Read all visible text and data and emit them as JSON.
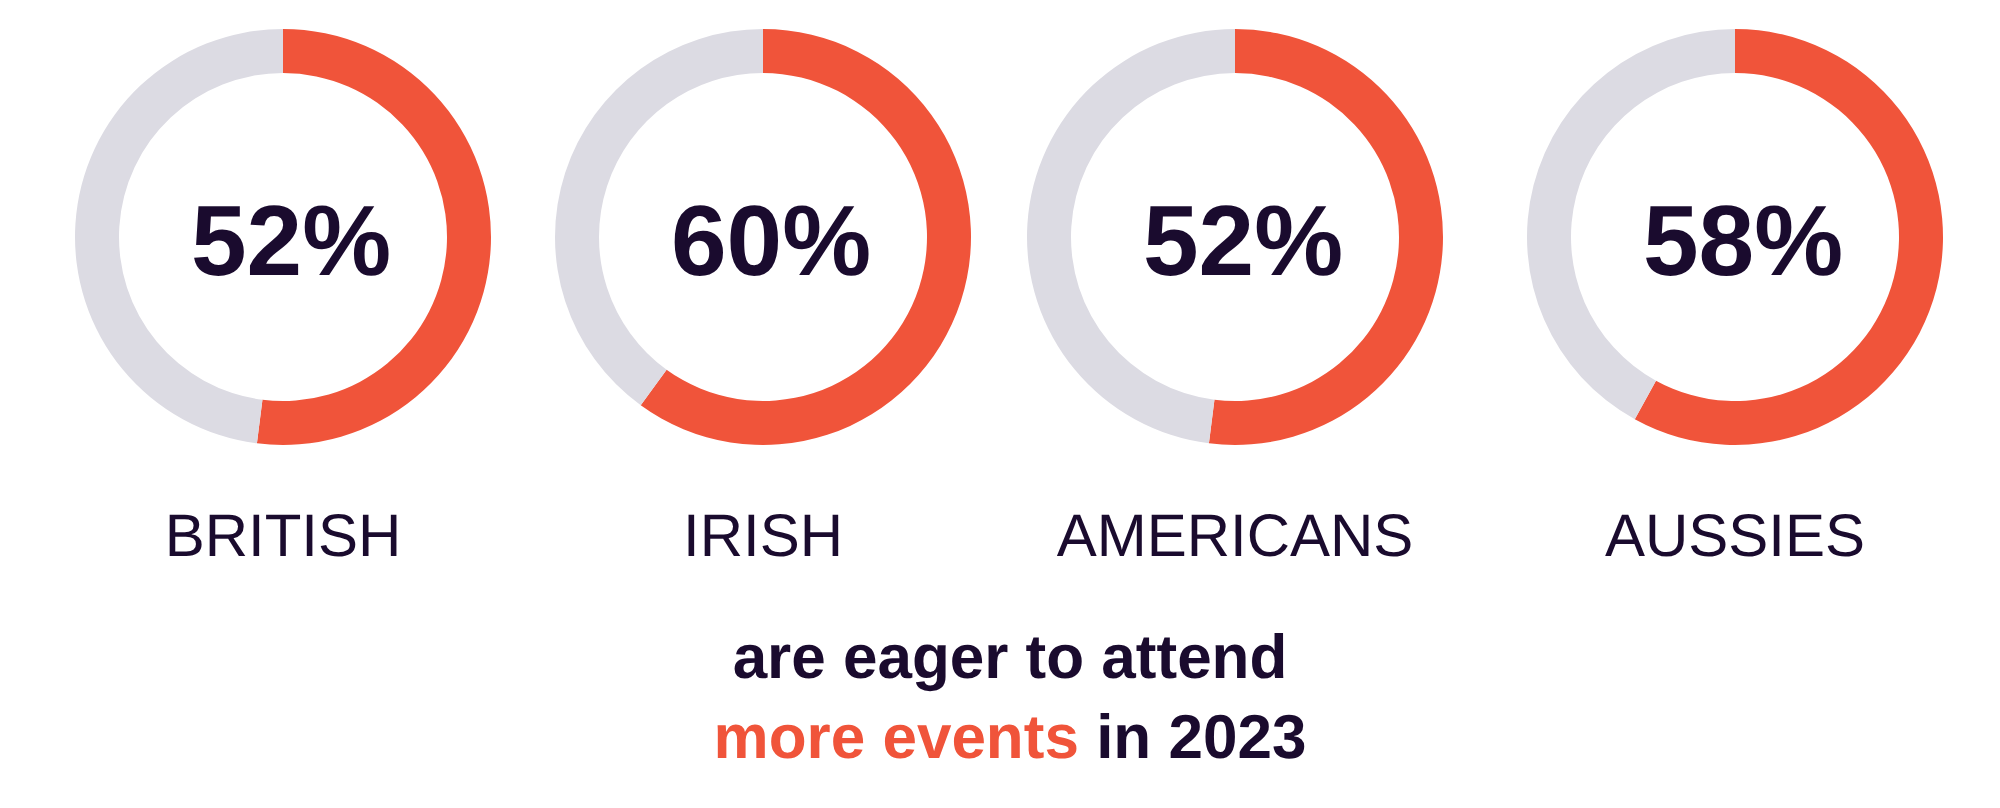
{
  "chart_data": [
    {
      "type": "donut",
      "title": "BRITISH",
      "categories": [
        null,
        null
      ],
      "values": [
        52,
        48
      ],
      "colors": [
        "#f0543a",
        "#dcdbe3"
      ],
      "value_labels": [
        "52%",
        null
      ]
    },
    {
      "type": "donut",
      "title": "IRISH",
      "categories": [
        null,
        null
      ],
      "values": [
        60,
        40
      ],
      "colors": [
        "#f0543a",
        "#dcdbe3"
      ],
      "value_labels": [
        "60%",
        null
      ]
    },
    {
      "type": "donut",
      "title": "AMERICANS",
      "categories": [
        null,
        null
      ],
      "values": [
        52,
        48
      ],
      "colors": [
        "#f0543a",
        "#dcdbe3"
      ],
      "value_labels": [
        "52%",
        null
      ]
    },
    {
      "type": "donut",
      "title": "AUSSIES",
      "categories": [
        null,
        null
      ],
      "values": [
        58,
        42
      ],
      "colors": [
        "#f0543a",
        "#dcdbe3"
      ],
      "value_labels": [
        "58%",
        null
      ]
    },
    {
      "type": "other",
      "annotations": [
        "are eager to attend",
        "more events",
        "in 2023"
      ],
      "colors": [
        "#1a0b2e",
        "#f0543a",
        "#1a0b2e"
      ]
    }
  ]
}
